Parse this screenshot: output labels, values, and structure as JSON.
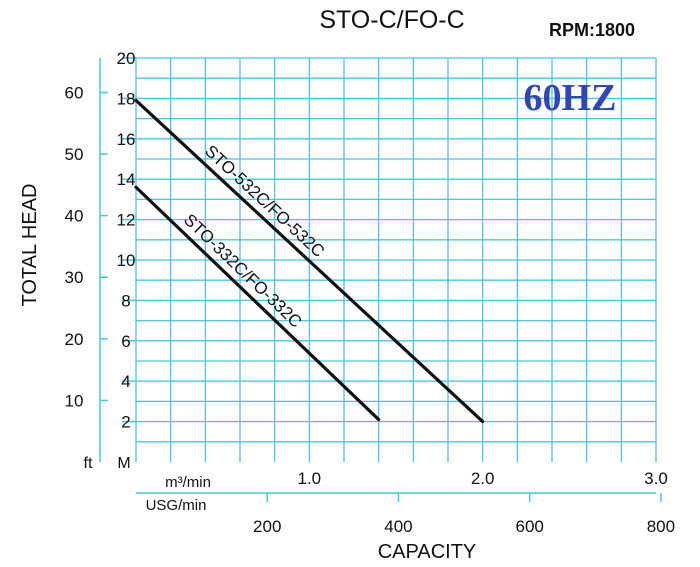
{
  "chart_data": {
    "type": "line",
    "title": "STO-C/FO-C",
    "subtitle": "RPM:1800",
    "badge": "60HZ",
    "ylabel": "TOTAL HEAD",
    "xlabel": "CAPACITY",
    "y_unit_m": "M",
    "y_unit_ft": "ft",
    "x_unit_m3": "m³/min",
    "x_unit_usg": "USG/min",
    "grid": true,
    "legend": "none",
    "x_m3": {
      "ticks": [
        "1.0",
        "2.0",
        "3.0"
      ],
      "values": [
        1.0,
        2.0,
        3.0
      ],
      "lim": [
        0,
        3.0
      ]
    },
    "x_usg": {
      "ticks": [
        "200",
        "400",
        "600",
        "800"
      ],
      "values": [
        200,
        400,
        600,
        800
      ],
      "lim": [
        0,
        792.5
      ]
    },
    "y_m": {
      "ticks": [
        "2",
        "4",
        "6",
        "8",
        "10",
        "12",
        "14",
        "16",
        "18",
        "20"
      ],
      "values": [
        2,
        4,
        6,
        8,
        10,
        12,
        14,
        16,
        18,
        20
      ],
      "lim": [
        0,
        20
      ]
    },
    "y_ft": {
      "ticks": [
        "10",
        "20",
        "30",
        "40",
        "50",
        "60"
      ],
      "values": [
        10,
        20,
        30,
        40,
        50,
        60
      ],
      "lim": [
        0,
        65.6
      ]
    },
    "series": [
      {
        "name": "STO-532C/FO-532C",
        "x": [
          0,
          2.0
        ],
        "y": [
          17.9,
          2.0
        ],
        "color": "#111111"
      },
      {
        "name": "STO-332C/FO-332C",
        "x": [
          0,
          1.4
        ],
        "y": [
          13.6,
          2.1
        ],
        "color": "#111111"
      }
    ],
    "colors": {
      "grid": "#45c7e6",
      "badge": "#2e47b8",
      "line": "#111111",
      "text": "#111111"
    }
  }
}
